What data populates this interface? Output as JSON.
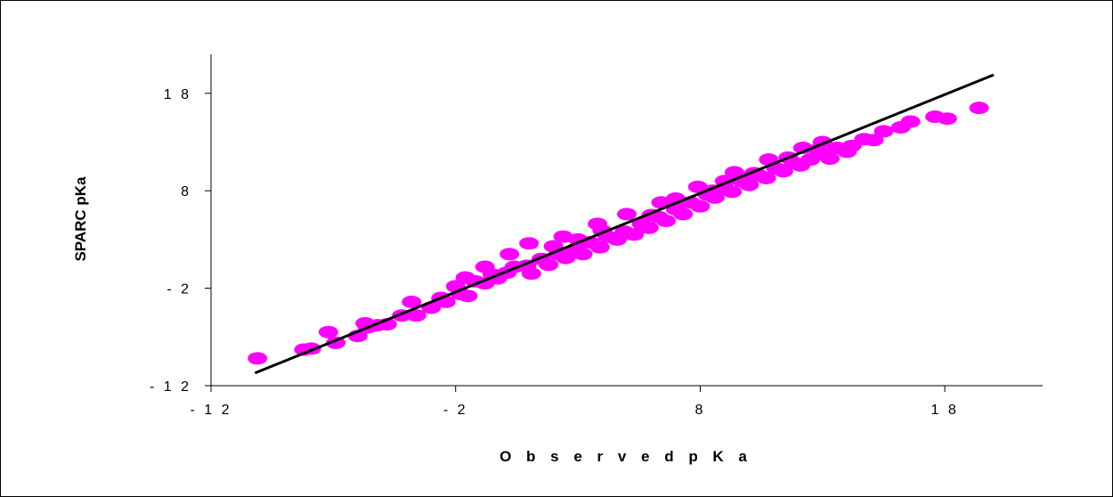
{
  "chart_data": {
    "type": "scatter",
    "title": "",
    "xlabel": "O b s e r v e d   p K a",
    "ylabel": "SPARC  pKa",
    "xlim": [
      -12,
      22
    ],
    "ylim": [
      -12,
      22
    ],
    "x_ticks": [
      -12,
      -2,
      8,
      18
    ],
    "y_ticks": [
      -12,
      -2,
      8,
      18
    ],
    "x_tick_labels": [
      "- 1 2",
      "- 2",
      "8",
      "1 8"
    ],
    "y_tick_labels": [
      "- 1 2",
      "- 2",
      "8",
      "1 8"
    ],
    "grid": false,
    "legend": "none",
    "marker_color": "#ff00ff",
    "line_color": "#000000",
    "trend_line": {
      "x": [
        -10.2,
        20.0
      ],
      "y": [
        -10.7,
        19.9
      ]
    },
    "series": [
      {
        "values": [
          [
            -10.1,
            -9.2
          ],
          [
            -8.2,
            -8.3
          ],
          [
            -7.9,
            -8.2
          ],
          [
            -6.9,
            -7.6
          ],
          [
            -6.0,
            -6.9
          ],
          [
            -7.2,
            -6.5
          ],
          [
            -5.6,
            -6.0
          ],
          [
            -5.2,
            -5.8
          ],
          [
            -5.7,
            -5.6
          ],
          [
            -4.8,
            -5.7
          ],
          [
            -4.2,
            -4.8
          ],
          [
            -3.6,
            -4.8
          ],
          [
            -3.8,
            -3.4
          ],
          [
            -3.0,
            -4.0
          ],
          [
            -2.6,
            -3.0
          ],
          [
            -2.4,
            -3.4
          ],
          [
            -1.8,
            -2.6
          ],
          [
            -1.5,
            -2.8
          ],
          [
            -2.0,
            -1.8
          ],
          [
            -1.2,
            -1.3
          ],
          [
            -0.8,
            -1.5
          ],
          [
            -0.5,
            -0.6
          ],
          [
            0.1,
            -0.4
          ],
          [
            0.4,
            0.2
          ],
          [
            -0.3,
            -1.0
          ],
          [
            0.9,
            0.3
          ],
          [
            1.1,
            -0.5
          ],
          [
            1.5,
            1.0
          ],
          [
            1.8,
            0.4
          ],
          [
            2.2,
            1.5
          ],
          [
            2.5,
            1.1
          ],
          [
            2.9,
            2.0
          ],
          [
            3.2,
            1.5
          ],
          [
            3.5,
            2.7
          ],
          [
            3.9,
            2.2
          ],
          [
            4.2,
            3.3
          ],
          [
            4.6,
            3.0
          ],
          [
            4.9,
            3.8
          ],
          [
            5.3,
            3.5
          ],
          [
            5.6,
            4.6
          ],
          [
            5.9,
            4.2
          ],
          [
            6.3,
            5.3
          ],
          [
            6.6,
            4.9
          ],
          [
            7.0,
            6.1
          ],
          [
            7.3,
            5.6
          ],
          [
            7.6,
            6.8
          ],
          [
            8.0,
            6.4
          ],
          [
            8.3,
            7.6
          ],
          [
            8.6,
            7.3
          ],
          [
            9.0,
            8.3
          ],
          [
            9.3,
            7.9
          ],
          [
            9.7,
            9.0
          ],
          [
            10.0,
            8.6
          ],
          [
            10.4,
            9.6
          ],
          [
            10.7,
            9.3
          ],
          [
            11.1,
            10.3
          ],
          [
            11.4,
            10.0
          ],
          [
            11.8,
            10.9
          ],
          [
            12.1,
            10.6
          ],
          [
            12.5,
            11.2
          ],
          [
            12.9,
            11.8
          ],
          [
            13.3,
            11.3
          ],
          [
            13.6,
            12.4
          ],
          [
            14.0,
            12.0
          ],
          [
            14.2,
            12.6
          ],
          [
            14.7,
            13.3
          ],
          [
            15.1,
            13.2
          ],
          [
            15.5,
            14.1
          ],
          [
            16.2,
            14.5
          ],
          [
            16.6,
            15.1
          ],
          [
            17.6,
            15.6
          ],
          [
            18.1,
            15.4
          ],
          [
            19.4,
            16.5
          ],
          [
            1.0,
            2.6
          ],
          [
            2.4,
            3.3
          ],
          [
            3.8,
            4.6
          ],
          [
            5.0,
            5.6
          ],
          [
            6.4,
            6.8
          ],
          [
            7.9,
            8.4
          ],
          [
            9.4,
            9.9
          ],
          [
            10.8,
            11.2
          ],
          [
            12.2,
            12.4
          ],
          [
            13.0,
            13.0
          ],
          [
            0.2,
            1.5
          ],
          [
            -0.8,
            0.2
          ],
          [
            -1.6,
            -0.9
          ],
          [
            4.0,
            3.9
          ],
          [
            6.0,
            5.5
          ],
          [
            8.5,
            8.0
          ],
          [
            10.2,
            9.8
          ],
          [
            11.6,
            11.4
          ],
          [
            2.0,
            2.3
          ],
          [
            3.0,
            3.0
          ],
          [
            7.0,
            7.2
          ],
          [
            9.0,
            9.0
          ],
          [
            12.8,
            12.2
          ]
        ]
      }
    ]
  }
}
